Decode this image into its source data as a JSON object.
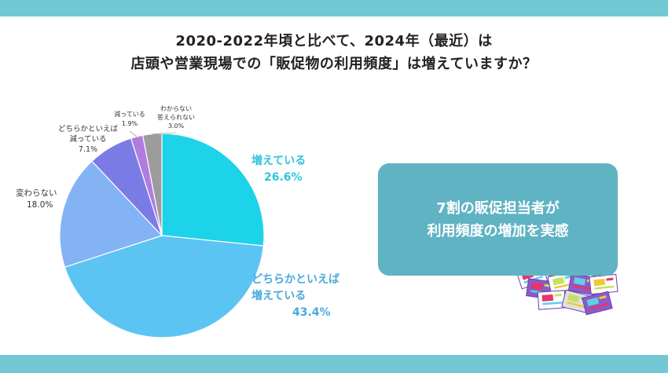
{
  "title_lines": [
    "2020-2022年頃と比べて、2024年（最近）は",
    "店頭や営業現場での「販促物の利用頻度」は増えていますか？"
  ],
  "callout_lines": [
    "7割の販促担当者が",
    "利用頻度の増加を実感"
  ],
  "chart_data": {
    "type": "pie",
    "title": "2020-2022年頃と比べて、2024年（最近）は店頭や営業現場での「販促物の利用頻度」は増えていますか？",
    "unit": "%",
    "start_angle_deg": 0,
    "direction": "clockwise",
    "slices": [
      {
        "label_lines": [
          "増えている"
        ],
        "value": 26.6,
        "value_label": "26.6%",
        "color": "#1dd3e9",
        "label_color": "#2ec4dc"
      },
      {
        "label_lines": [
          "どちらかといえば",
          "増えている"
        ],
        "value": 43.4,
        "value_label": "43.4%",
        "color": "#5cc4f2",
        "label_color": "#4aa9dc"
      },
      {
        "label_lines": [
          "変わらない"
        ],
        "value": 18.0,
        "value_label": "18.0%",
        "color": "#84b3f5",
        "label_color": "#333333"
      },
      {
        "label_lines": [
          "どちらかといえば",
          "減っている"
        ],
        "value": 7.1,
        "value_label": "7.1%",
        "color": "#7b7be6",
        "label_color": "#333333"
      },
      {
        "label_lines": [
          "減っている"
        ],
        "value": 1.9,
        "value_label": "1.9%",
        "color": "#b07ce2",
        "label_color": "#333333"
      },
      {
        "label_lines": [
          "わからない",
          "答えられない"
        ],
        "value": 3.0,
        "value_label": "3.0%",
        "color": "#9c9c9c",
        "label_color": "#333333"
      }
    ]
  }
}
